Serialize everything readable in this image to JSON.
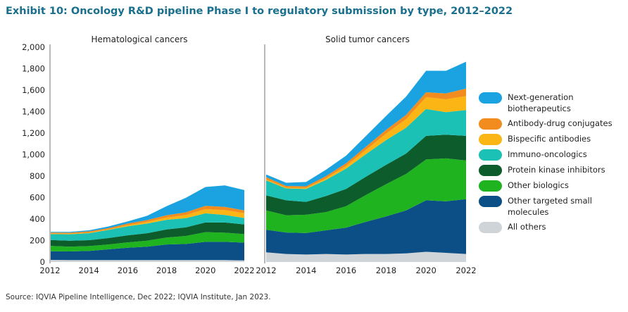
{
  "title": "Exhibit 10: Oncology R&D pipeline Phase I to regulatory submission by type, 2012–2022",
  "source": "Source: IQVIA Pipeline Intelligence, Dec 2022; IQVIA Institute, Jan 2023.",
  "legend": [
    {
      "key": "nextgen",
      "label": "Next-generation biotherapeutics",
      "color": "#1aa3e0"
    },
    {
      "key": "adc",
      "label": "Antibody-drug conjugates",
      "color": "#f28c1e"
    },
    {
      "key": "bispecific",
      "label": "Bispecific antibodies",
      "color": "#fbb514"
    },
    {
      "key": "immuno",
      "label": "Immuno-oncologics",
      "color": "#1cc1b6"
    },
    {
      "key": "pki",
      "label": "Protein kinase inhibitors",
      "color": "#0d5c2c"
    },
    {
      "key": "biologics",
      "label": "Other biologics",
      "color": "#1fb31f"
    },
    {
      "key": "small",
      "label": "Other targeted small molecules",
      "color": "#0c4f86"
    },
    {
      "key": "others",
      "label": "All others",
      "color": "#cfd4d8"
    }
  ],
  "chart_data": [
    {
      "type": "area",
      "title": "Hematological cancers",
      "x": [
        2012,
        2013,
        2014,
        2015,
        2016,
        2017,
        2018,
        2019,
        2020,
        2021,
        2022
      ],
      "xticks": [
        2012,
        2014,
        2016,
        2018,
        2020,
        2022
      ],
      "ylim": [
        0,
        2000
      ],
      "yticks": [
        "0",
        "200",
        "400",
        "600",
        "800",
        "1,000",
        "1,200",
        "1,400",
        "1,600",
        "1,800",
        "2,000"
      ],
      "series": [
        {
          "name": "All others",
          "values": [
            20,
            18,
            18,
            18,
            18,
            18,
            18,
            18,
            18,
            18,
            15
          ]
        },
        {
          "name": "Other targeted small molecules",
          "values": [
            80,
            80,
            85,
            100,
            115,
            125,
            145,
            150,
            170,
            170,
            165
          ]
        },
        {
          "name": "Other biologics",
          "values": [
            50,
            45,
            45,
            45,
            50,
            55,
            65,
            75,
            90,
            85,
            80
          ]
        },
        {
          "name": "Protein kinase inhibitors",
          "values": [
            55,
            55,
            55,
            60,
            65,
            70,
            75,
            80,
            90,
            95,
            90
          ]
        },
        {
          "name": "Immuno-oncologics",
          "values": [
            55,
            60,
            65,
            75,
            85,
            90,
            90,
            85,
            85,
            70,
            60
          ]
        },
        {
          "name": "Bispecific antibodies",
          "values": [
            5,
            5,
            5,
            5,
            10,
            15,
            20,
            30,
            40,
            45,
            45
          ]
        },
        {
          "name": "Antibody-drug conjugates",
          "values": [
            10,
            10,
            12,
            12,
            15,
            17,
            22,
            25,
            30,
            30,
            25
          ]
        },
        {
          "name": "Next-generation biotherapeutics",
          "values": [
            5,
            7,
            10,
            15,
            20,
            40,
            85,
            135,
            175,
            200,
            190
          ]
        }
      ]
    },
    {
      "type": "area",
      "title": "Solid tumor cancers",
      "x": [
        2012,
        2013,
        2014,
        2015,
        2016,
        2017,
        2018,
        2019,
        2020,
        2021,
        2022
      ],
      "xticks": [
        2012,
        2014,
        2016,
        2018,
        2020,
        2022
      ],
      "ylim": [
        0,
        2000
      ],
      "series": [
        {
          "name": "All others",
          "values": [
            90,
            75,
            70,
            75,
            70,
            75,
            75,
            80,
            95,
            85,
            75
          ]
        },
        {
          "name": "Other targeted small molecules",
          "values": [
            210,
            200,
            200,
            220,
            250,
            300,
            350,
            400,
            480,
            480,
            510
          ]
        },
        {
          "name": "Other biologics",
          "values": [
            180,
            160,
            170,
            170,
            200,
            250,
            300,
            340,
            380,
            400,
            360
          ]
        },
        {
          "name": "Protein kinase inhibitors",
          "values": [
            140,
            140,
            120,
            150,
            160,
            170,
            180,
            190,
            220,
            220,
            230
          ]
        },
        {
          "name": "Immuno-oncologics",
          "values": [
            140,
            110,
            120,
            150,
            190,
            210,
            230,
            240,
            250,
            210,
            240
          ]
        },
        {
          "name": "Bispecific antibodies",
          "values": [
            10,
            8,
            10,
            15,
            25,
            40,
            60,
            80,
            110,
            120,
            130
          ]
        },
        {
          "name": "Antibody-drug conjugates",
          "values": [
            20,
            15,
            15,
            20,
            25,
            30,
            35,
            40,
            45,
            55,
            70
          ]
        },
        {
          "name": "Next-generation biotherapeutics",
          "values": [
            25,
            30,
            40,
            60,
            70,
            100,
            130,
            170,
            200,
            210,
            250
          ]
        }
      ]
    }
  ]
}
